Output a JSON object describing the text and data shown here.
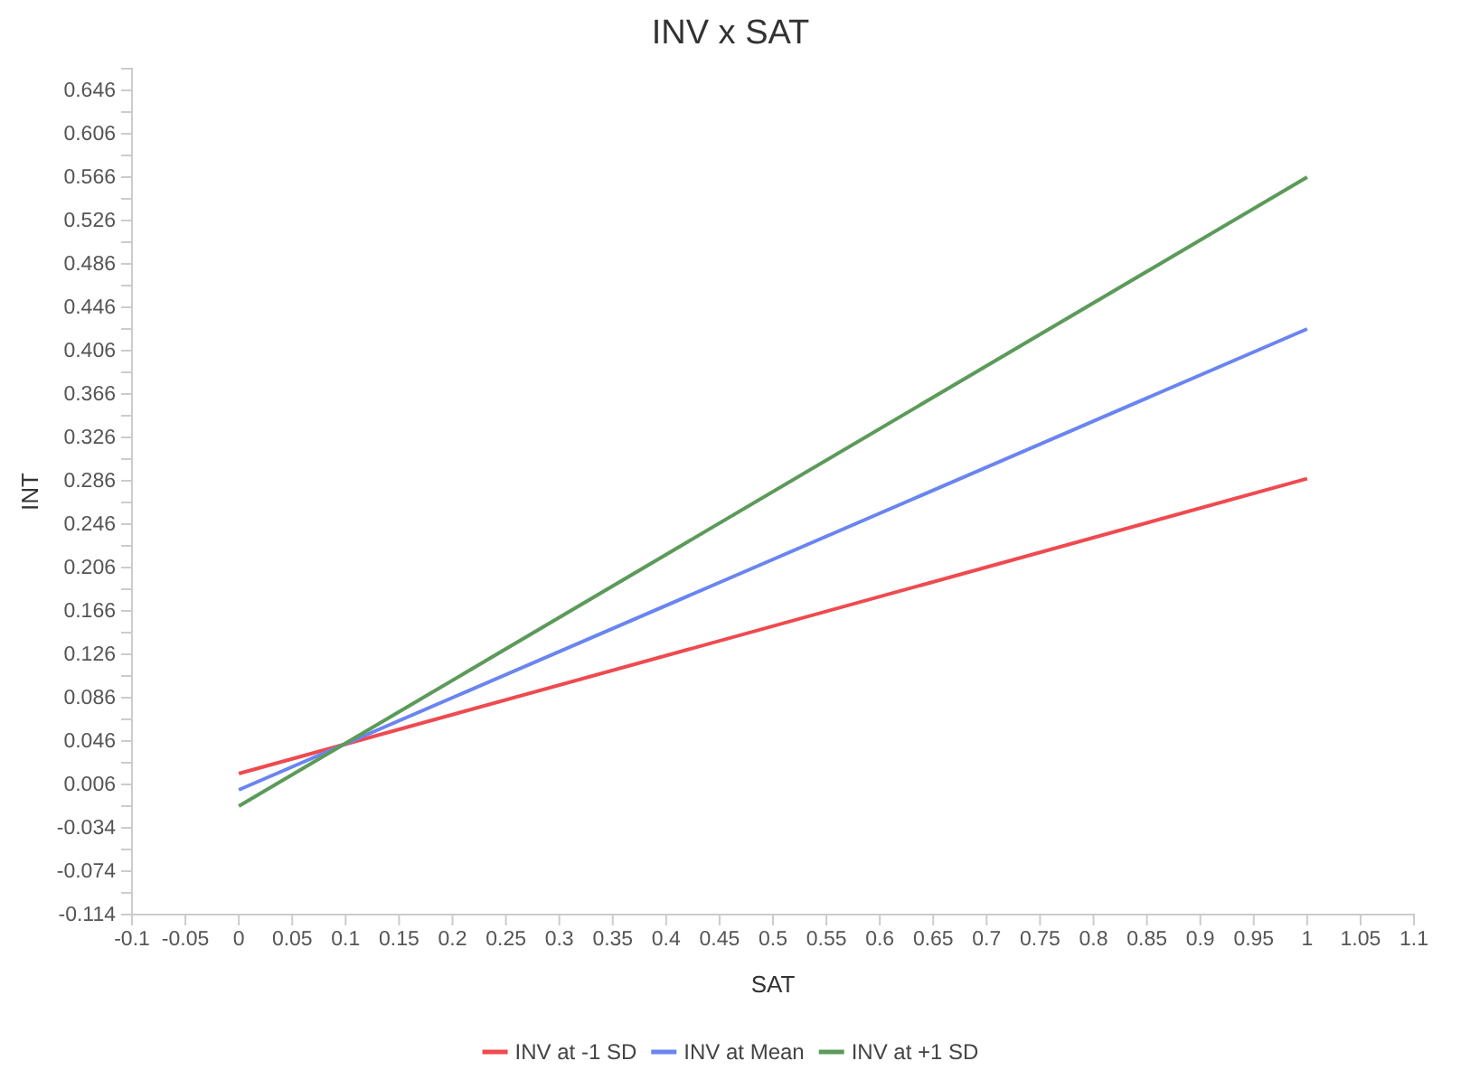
{
  "chart_data": {
    "type": "line",
    "title": "INV x SAT",
    "xlabel": "SAT",
    "ylabel": "INT",
    "x": [
      0,
      1
    ],
    "series": [
      {
        "name": "INV at -1 SD",
        "color": "#ef4a4f",
        "values": [
          0.016,
          0.288
        ]
      },
      {
        "name": "INV at Mean",
        "color": "#6a85f0",
        "values": [
          0.001,
          0.426
        ]
      },
      {
        "name": "INV at +1 SD",
        "color": "#5c9a5a",
        "values": [
          -0.014,
          0.566
        ]
      }
    ],
    "xlim": [
      -0.1,
      1.1
    ],
    "xticks": [
      -0.1,
      -0.05,
      0,
      0.05,
      0.1,
      0.15,
      0.2,
      0.25,
      0.3,
      0.35,
      0.4,
      0.45,
      0.5,
      0.55,
      0.6,
      0.65,
      0.7,
      0.75,
      0.8,
      0.85,
      0.9,
      0.95,
      1,
      1.05,
      1.1
    ],
    "ylim": [
      -0.114,
      0.666
    ],
    "yticks": [
      -0.114,
      {
        "value": -0.094,
        "label": null
      },
      -0.074,
      {
        "value": -0.054,
        "label": null
      },
      -0.034,
      {
        "value": -0.014,
        "label": null
      },
      0.006,
      {
        "value": 0.026,
        "label": null
      },
      0.046,
      {
        "value": 0.066,
        "label": null
      },
      0.086,
      {
        "value": 0.106,
        "label": null
      },
      0.126,
      {
        "value": 0.146,
        "label": null
      },
      0.166,
      {
        "value": 0.186,
        "label": null
      },
      0.206,
      {
        "value": 0.226,
        "label": null
      },
      0.246,
      {
        "value": 0.266,
        "label": null
      },
      0.286,
      {
        "value": 0.306,
        "label": null
      },
      0.326,
      {
        "value": 0.346,
        "label": null
      },
      0.366,
      {
        "value": 0.386,
        "label": null
      },
      0.406,
      {
        "value": 0.426,
        "label": null
      },
      0.446,
      {
        "value": 0.466,
        "label": null
      },
      0.486,
      {
        "value": 0.506,
        "label": null
      },
      0.526,
      {
        "value": 0.546,
        "label": null
      },
      0.566,
      {
        "value": 0.586,
        "label": null
      },
      0.606,
      {
        "value": 0.626,
        "label": null
      },
      0.646,
      {
        "value": 0.666,
        "label": null
      }
    ],
    "grid": false,
    "legend": "bottom",
    "marker": "none",
    "line_style": "solid"
  }
}
